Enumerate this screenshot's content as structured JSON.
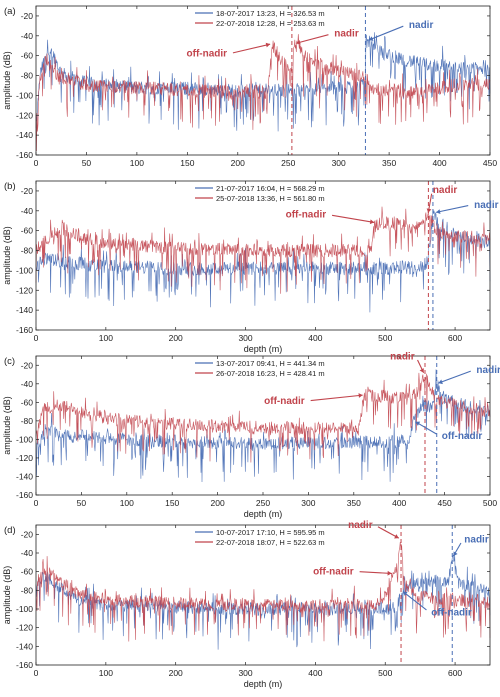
{
  "colors": {
    "blue": "#4a6fb5",
    "red": "#c1444c",
    "axis": "#222222"
  },
  "chart_data": [
    {
      "type": "line",
      "panel_label": "(a)",
      "xlabel": "",
      "ylabel": "amplitude (dB)",
      "xlim": [
        0,
        450
      ],
      "ylim": [
        -160,
        -10
      ],
      "xticks": [
        0,
        50,
        100,
        150,
        200,
        250,
        300,
        350,
        400,
        450
      ],
      "yticks": [
        -160,
        -140,
        -120,
        -100,
        -80,
        -60,
        -40,
        -20
      ],
      "legend_position": "top-center",
      "series": [
        {
          "name": "18-07-2017 13:23, H = 326.53 m",
          "color": "blue",
          "nadir_x": 326.53,
          "profile": [
            [
              0,
              -135
            ],
            [
              4,
              -80
            ],
            [
              10,
              -58
            ],
            [
              15,
              -54
            ],
            [
              25,
              -78
            ],
            [
              50,
              -88
            ],
            [
              100,
              -92
            ],
            [
              150,
              -93
            ],
            [
              200,
              -95
            ],
            [
              250,
              -95
            ],
            [
              300,
              -92
            ],
            [
              320,
              -90
            ],
            [
              326,
              -84
            ],
            [
              328,
              -45
            ],
            [
              345,
              -58
            ],
            [
              380,
              -68
            ],
            [
              420,
              -72
            ],
            [
              450,
              -75
            ]
          ]
        },
        {
          "name": "22-07-2018 12:28, H = 253.63 m",
          "color": "red",
          "nadir_x": 253.63,
          "profile": [
            [
              0,
              -130
            ],
            [
              4,
              -85
            ],
            [
              10,
              -62
            ],
            [
              20,
              -80
            ],
            [
              50,
              -90
            ],
            [
              100,
              -92
            ],
            [
              150,
              -95
            ],
            [
              200,
              -97
            ],
            [
              230,
              -96
            ],
            [
              234,
              -48
            ],
            [
              245,
              -68
            ],
            [
              253,
              -72
            ],
            [
              256,
              -48
            ],
            [
              275,
              -68
            ],
            [
              310,
              -78
            ],
            [
              326,
              -80
            ],
            [
              330,
              -92
            ],
            [
              380,
              -98
            ],
            [
              420,
              -88
            ],
            [
              450,
              -90
            ]
          ]
        }
      ],
      "annotations": [
        {
          "text": "off-nadir",
          "color": "red",
          "x": 234,
          "y": -48
        },
        {
          "text": "nadir",
          "color": "red",
          "x": 256,
          "y": -48
        },
        {
          "text": "nadir",
          "color": "blue",
          "x": 328,
          "y": -45
        }
      ]
    },
    {
      "type": "line",
      "panel_label": "(b)",
      "xlabel": "depth (m)",
      "ylabel": "amplitude (dB)",
      "xlim": [
        0,
        650
      ],
      "ylim": [
        -160,
        -10
      ],
      "xticks": [
        0,
        100,
        200,
        300,
        400,
        500,
        600
      ],
      "yticks": [
        -160,
        -140,
        -120,
        -100,
        -80,
        -60,
        -40,
        -20
      ],
      "legend_position": "top-center",
      "series": [
        {
          "name": "21-07-2017 16:04, H = 568.29 m",
          "color": "blue",
          "nadir_x": 568.29,
          "profile": [
            [
              0,
              -100
            ],
            [
              10,
              -88
            ],
            [
              50,
              -92
            ],
            [
              100,
              -96
            ],
            [
              200,
              -98
            ],
            [
              300,
              -98
            ],
            [
              400,
              -98
            ],
            [
              500,
              -98
            ],
            [
              555,
              -96
            ],
            [
              563,
              -88
            ],
            [
              568,
              -42
            ],
            [
              580,
              -62
            ],
            [
              620,
              -68
            ],
            [
              650,
              -72
            ]
          ]
        },
        {
          "name": "25-07-2018 13:36, H = 561.80 m",
          "color": "red",
          "nadir_x": 561.8,
          "profile": [
            [
              0,
              -80
            ],
            [
              20,
              -66
            ],
            [
              40,
              -58
            ],
            [
              60,
              -66
            ],
            [
              100,
              -72
            ],
            [
              200,
              -78
            ],
            [
              300,
              -80
            ],
            [
              400,
              -80
            ],
            [
              480,
              -80
            ],
            [
              487,
              -52
            ],
            [
              520,
              -54
            ],
            [
              550,
              -58
            ],
            [
              561,
              -44
            ],
            [
              575,
              -62
            ],
            [
              620,
              -66
            ],
            [
              650,
              -70
            ]
          ]
        }
      ],
      "annotations": [
        {
          "text": "off-nadir",
          "color": "red",
          "x": 487,
          "y": -52
        },
        {
          "text": "nadir",
          "color": "red",
          "x": 561,
          "y": -44
        },
        {
          "text": "nadir",
          "color": "blue",
          "x": 570,
          "y": -42
        }
      ]
    },
    {
      "type": "line",
      "panel_label": "(c)",
      "xlabel": "depth (m)",
      "ylabel": "amplitude (dB)",
      "xlim": [
        0,
        500
      ],
      "ylim": [
        -160,
        -10
      ],
      "xticks": [
        0,
        50,
        100,
        150,
        200,
        250,
        300,
        350,
        400,
        450,
        500
      ],
      "yticks": [
        -160,
        -140,
        -120,
        -100,
        -80,
        -60,
        -40,
        -20
      ],
      "legend_position": "top-center",
      "series": [
        {
          "name": "13-07-2017 09:41, H = 441.34 m",
          "color": "blue",
          "nadir_x": 441.34,
          "profile": [
            [
              0,
              -108
            ],
            [
              10,
              -90
            ],
            [
              50,
              -96
            ],
            [
              100,
              -100
            ],
            [
              200,
              -104
            ],
            [
              300,
              -104
            ],
            [
              400,
              -102
            ],
            [
              412,
              -98
            ],
            [
              416,
              -80
            ],
            [
              425,
              -62
            ],
            [
              436,
              -66
            ],
            [
              441,
              -40
            ],
            [
              450,
              -56
            ],
            [
              480,
              -66
            ],
            [
              500,
              -70
            ]
          ]
        },
        {
          "name": "26-07-2018 16:23, H = 428.41 m",
          "color": "red",
          "nadir_x": 428.41,
          "profile": [
            [
              0,
              -90
            ],
            [
              10,
              -66
            ],
            [
              30,
              -64
            ],
            [
              60,
              -74
            ],
            [
              100,
              -80
            ],
            [
              200,
              -86
            ],
            [
              300,
              -88
            ],
            [
              355,
              -88
            ],
            [
              362,
              -52
            ],
            [
              390,
              -54
            ],
            [
              410,
              -56
            ],
            [
              420,
              -50
            ],
            [
              428,
              -30
            ],
            [
              440,
              -58
            ],
            [
              470,
              -64
            ],
            [
              500,
              -70
            ]
          ]
        }
      ],
      "annotations": [
        {
          "text": "off-nadir",
          "color": "red",
          "x": 362,
          "y": -52
        },
        {
          "text": "nadir",
          "color": "red",
          "x": 428,
          "y": -30
        },
        {
          "text": "nadir",
          "color": "blue",
          "x": 441,
          "y": -40
        },
        {
          "text": "off-nadir",
          "color": "blue",
          "x": 416,
          "y": -80
        }
      ]
    },
    {
      "type": "line",
      "panel_label": "(d)",
      "xlabel": "depth (m)",
      "ylabel": "amplitude (dB)",
      "xlim": [
        0,
        650
      ],
      "ylim": [
        -160,
        -10
      ],
      "xticks": [
        0,
        100,
        200,
        300,
        400,
        500,
        600
      ],
      "yticks": [
        -160,
        -140,
        -120,
        -100,
        -80,
        -60,
        -40,
        -20
      ],
      "legend_position": "top-center",
      "series": [
        {
          "name": "10-07-2017 17:10, H = 595.95 m",
          "color": "blue",
          "nadir_x": 595.95,
          "profile": [
            [
              0,
              -80
            ],
            [
              10,
              -62
            ],
            [
              30,
              -74
            ],
            [
              60,
              -90
            ],
            [
              100,
              -96
            ],
            [
              200,
              -98
            ],
            [
              300,
              -100
            ],
            [
              400,
              -100
            ],
            [
              500,
              -100
            ],
            [
              518,
              -98
            ],
            [
              523,
              -80
            ],
            [
              540,
              -72
            ],
            [
              580,
              -70
            ],
            [
              590,
              -72
            ],
            [
              596,
              -45
            ],
            [
              605,
              -72
            ],
            [
              640,
              -80
            ],
            [
              650,
              -84
            ]
          ]
        },
        {
          "name": "22-07-2018 18:07, H = 522.63 m",
          "color": "red",
          "nadir_x": 522.63,
          "profile": [
            [
              0,
              -75
            ],
            [
              10,
              -56
            ],
            [
              30,
              -68
            ],
            [
              60,
              -84
            ],
            [
              100,
              -90
            ],
            [
              200,
              -94
            ],
            [
              300,
              -96
            ],
            [
              400,
              -96
            ],
            [
              480,
              -94
            ],
            [
              500,
              -88
            ],
            [
              510,
              -62
            ],
            [
              518,
              -56
            ],
            [
              522,
              -25
            ],
            [
              528,
              -70
            ],
            [
              545,
              -86
            ],
            [
              600,
              -90
            ],
            [
              650,
              -92
            ]
          ]
        }
      ],
      "annotations": [
        {
          "text": "nadir",
          "color": "red",
          "x": 522,
          "y": -25
        },
        {
          "text": "off-nadir",
          "color": "red",
          "x": 512,
          "y": -62
        },
        {
          "text": "nadir",
          "color": "blue",
          "x": 596,
          "y": -45
        },
        {
          "text": "off-nadir",
          "color": "blue",
          "x": 523,
          "y": -80
        }
      ]
    }
  ]
}
